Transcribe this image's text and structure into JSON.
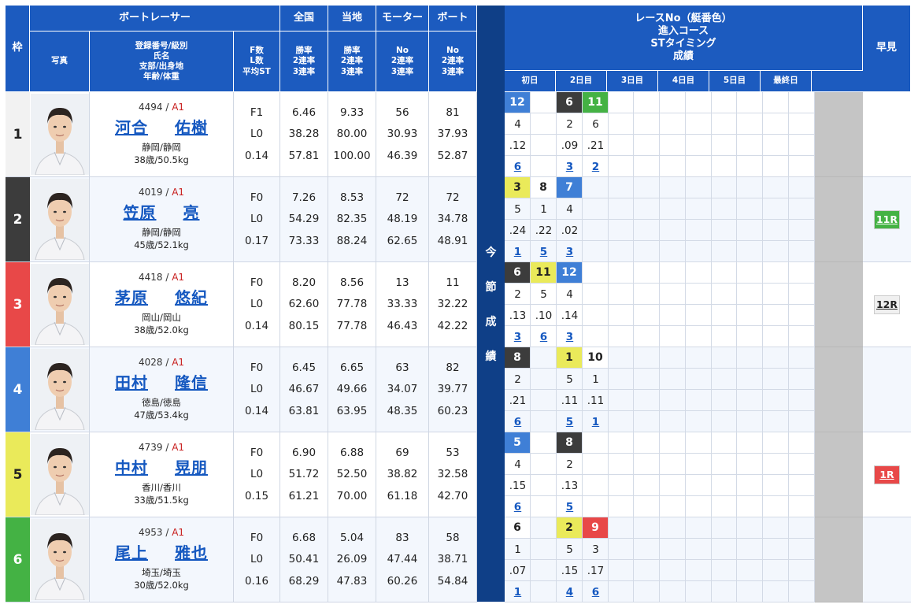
{
  "header": {
    "waku": "枠",
    "racer": "ボートレーサー",
    "photo": "写真",
    "info_lines": [
      "登録番号/級別",
      "氏名",
      "支部/出身地",
      "年齢/体重"
    ],
    "f_lines": [
      "F数",
      "L数",
      "平均ST"
    ],
    "zenkoku": "全国",
    "touchi": "当地",
    "motor": "モーター",
    "boat": "ボート",
    "rate_lines": [
      "勝率",
      "2連率",
      "3連率"
    ],
    "no_lines": [
      "No",
      "2連率",
      "3連率"
    ],
    "race_lines": [
      "レースNo（艇番色）",
      "進入コース",
      "STタイミング",
      "成績"
    ],
    "days": [
      "初日",
      "2日目",
      "3日目",
      "4日目",
      "5日目",
      "最終日"
    ],
    "hayami": "早見",
    "konsetsu": [
      "今",
      "節",
      "成",
      "績"
    ]
  },
  "colors": {
    "header_blue": "#1c5bbf",
    "navy": "#0f3f87",
    "boat1": "#ffffff",
    "boat2": "#3c3c3c",
    "boat3": "#e84848",
    "boat4": "#3f7fd6",
    "boat5": "#eaea5a",
    "boat6": "#44b244",
    "link": "#1558c0",
    "class_red": "#c82020"
  },
  "racers": [
    {
      "waku": "1",
      "reg": "4494",
      "cls": "A1",
      "sei": "河合",
      "mei": "佑樹",
      "branch": "静岡/静岡",
      "age_weight": "38歳/50.5kg",
      "f": "F1",
      "l": "L0",
      "st": "0.14",
      "zen": [
        "6.46",
        "38.28",
        "57.81"
      ],
      "toc": [
        "9.33",
        "80.00",
        "100.00"
      ],
      "motor": [
        "56",
        "30.93",
        "46.39"
      ],
      "boat": [
        "81",
        "37.93",
        "52.87"
      ]
    },
    {
      "waku": "2",
      "reg": "4019",
      "cls": "A1",
      "sei": "笠原",
      "mei": "亮",
      "branch": "静岡/静岡",
      "age_weight": "45歳/52.1kg",
      "f": "F0",
      "l": "L0",
      "st": "0.17",
      "zen": [
        "7.26",
        "54.29",
        "73.33"
      ],
      "toc": [
        "8.53",
        "82.35",
        "88.24"
      ],
      "motor": [
        "72",
        "48.19",
        "62.65"
      ],
      "boat": [
        "72",
        "34.78",
        "48.91"
      ]
    },
    {
      "waku": "3",
      "reg": "4418",
      "cls": "A1",
      "sei": "茅原",
      "mei": "悠紀",
      "branch": "岡山/岡山",
      "age_weight": "38歳/52.0kg",
      "f": "F0",
      "l": "L0",
      "st": "0.14",
      "zen": [
        "8.20",
        "62.60",
        "80.15"
      ],
      "toc": [
        "8.56",
        "77.78",
        "77.78"
      ],
      "motor": [
        "13",
        "33.33",
        "46.43"
      ],
      "boat": [
        "11",
        "32.22",
        "42.22"
      ]
    },
    {
      "waku": "4",
      "reg": "4028",
      "cls": "A1",
      "sei": "田村",
      "mei": "隆信",
      "branch": "徳島/徳島",
      "age_weight": "47歳/53.4kg",
      "f": "F0",
      "l": "L0",
      "st": "0.14",
      "zen": [
        "6.45",
        "46.67",
        "63.81"
      ],
      "toc": [
        "6.65",
        "49.66",
        "63.95"
      ],
      "motor": [
        "63",
        "34.07",
        "48.35"
      ],
      "boat": [
        "82",
        "39.77",
        "60.23"
      ]
    },
    {
      "waku": "5",
      "reg": "4739",
      "cls": "A1",
      "sei": "中村",
      "mei": "晃朋",
      "branch": "香川/香川",
      "age_weight": "33歳/51.5kg",
      "f": "F0",
      "l": "L0",
      "st": "0.15",
      "zen": [
        "6.90",
        "51.72",
        "61.21"
      ],
      "toc": [
        "6.88",
        "52.50",
        "70.00"
      ],
      "motor": [
        "69",
        "38.82",
        "61.18"
      ],
      "boat": [
        "53",
        "32.58",
        "42.70"
      ]
    },
    {
      "waku": "6",
      "reg": "4953",
      "cls": "A1",
      "sei": "尾上",
      "mei": "雅也",
      "branch": "埼玉/埼玉",
      "age_weight": "30歳/52.0kg",
      "f": "F0",
      "l": "L0",
      "st": "0.16",
      "zen": [
        "6.68",
        "50.41",
        "68.29"
      ],
      "toc": [
        "5.04",
        "26.09",
        "47.83"
      ],
      "motor": [
        "83",
        "47.44",
        "60.26"
      ],
      "boat": [
        "58",
        "38.71",
        "54.84"
      ]
    }
  ],
  "results": [
    [
      {
        "col": 0,
        "race": "12",
        "boat": 4,
        "course": "4",
        "st": ".12",
        "rank": "6"
      },
      {
        "col": 2,
        "race": "6",
        "boat": 2,
        "course": "2",
        "st": ".09",
        "rank": "3"
      },
      {
        "col": 3,
        "race": "11",
        "boat": 6,
        "course": "6",
        "st": ".21",
        "rank": "2"
      }
    ],
    [
      {
        "col": 0,
        "race": "3",
        "boat": 5,
        "course": "5",
        "st": ".24",
        "rank": "1"
      },
      {
        "col": 1,
        "race": "8",
        "boat": 1,
        "course": "1",
        "st": ".22",
        "rank": "5"
      },
      {
        "col": 2,
        "race": "7",
        "boat": 4,
        "course": "4",
        "st": ".02",
        "rank": "3"
      }
    ],
    [
      {
        "col": 0,
        "race": "6",
        "boat": 2,
        "course": "2",
        "st": ".13",
        "rank": "3"
      },
      {
        "col": 1,
        "race": "11",
        "boat": 5,
        "course": "5",
        "st": ".10",
        "rank": "6"
      },
      {
        "col": 2,
        "race": "12",
        "boat": 4,
        "course": "4",
        "st": ".14",
        "rank": "3"
      }
    ],
    [
      {
        "col": 0,
        "race": "8",
        "boat": 2,
        "course": "2",
        "st": ".21",
        "rank": "6"
      },
      {
        "col": 2,
        "race": "1",
        "boat": 5,
        "course": "5",
        "st": ".11",
        "rank": "5"
      },
      {
        "col": 3,
        "race": "10",
        "boat": 1,
        "course": "1",
        "st": ".11",
        "rank": "1"
      }
    ],
    [
      {
        "col": 0,
        "race": "5",
        "boat": 4,
        "course": "4",
        "st": ".15",
        "rank": "6"
      },
      {
        "col": 2,
        "race": "8",
        "boat": 2,
        "course": "2",
        "st": ".13",
        "rank": "5"
      }
    ],
    [
      {
        "col": 0,
        "race": "6",
        "boat": 1,
        "course": "1",
        "st": ".07",
        "rank": "1"
      },
      {
        "col": 2,
        "race": "2",
        "boat": 5,
        "course": "5",
        "st": ".15",
        "rank": "4"
      },
      {
        "col": 3,
        "race": "9",
        "boat": 3,
        "course": "3",
        "st": ".17",
        "rank": "6"
      }
    ]
  ],
  "early": [
    {
      "row": 1,
      "label": "11R",
      "boat": 6
    },
    {
      "row": 2,
      "label": "12R",
      "boat": 1
    },
    {
      "row": 4,
      "label": "1R",
      "boat": 3
    }
  ]
}
